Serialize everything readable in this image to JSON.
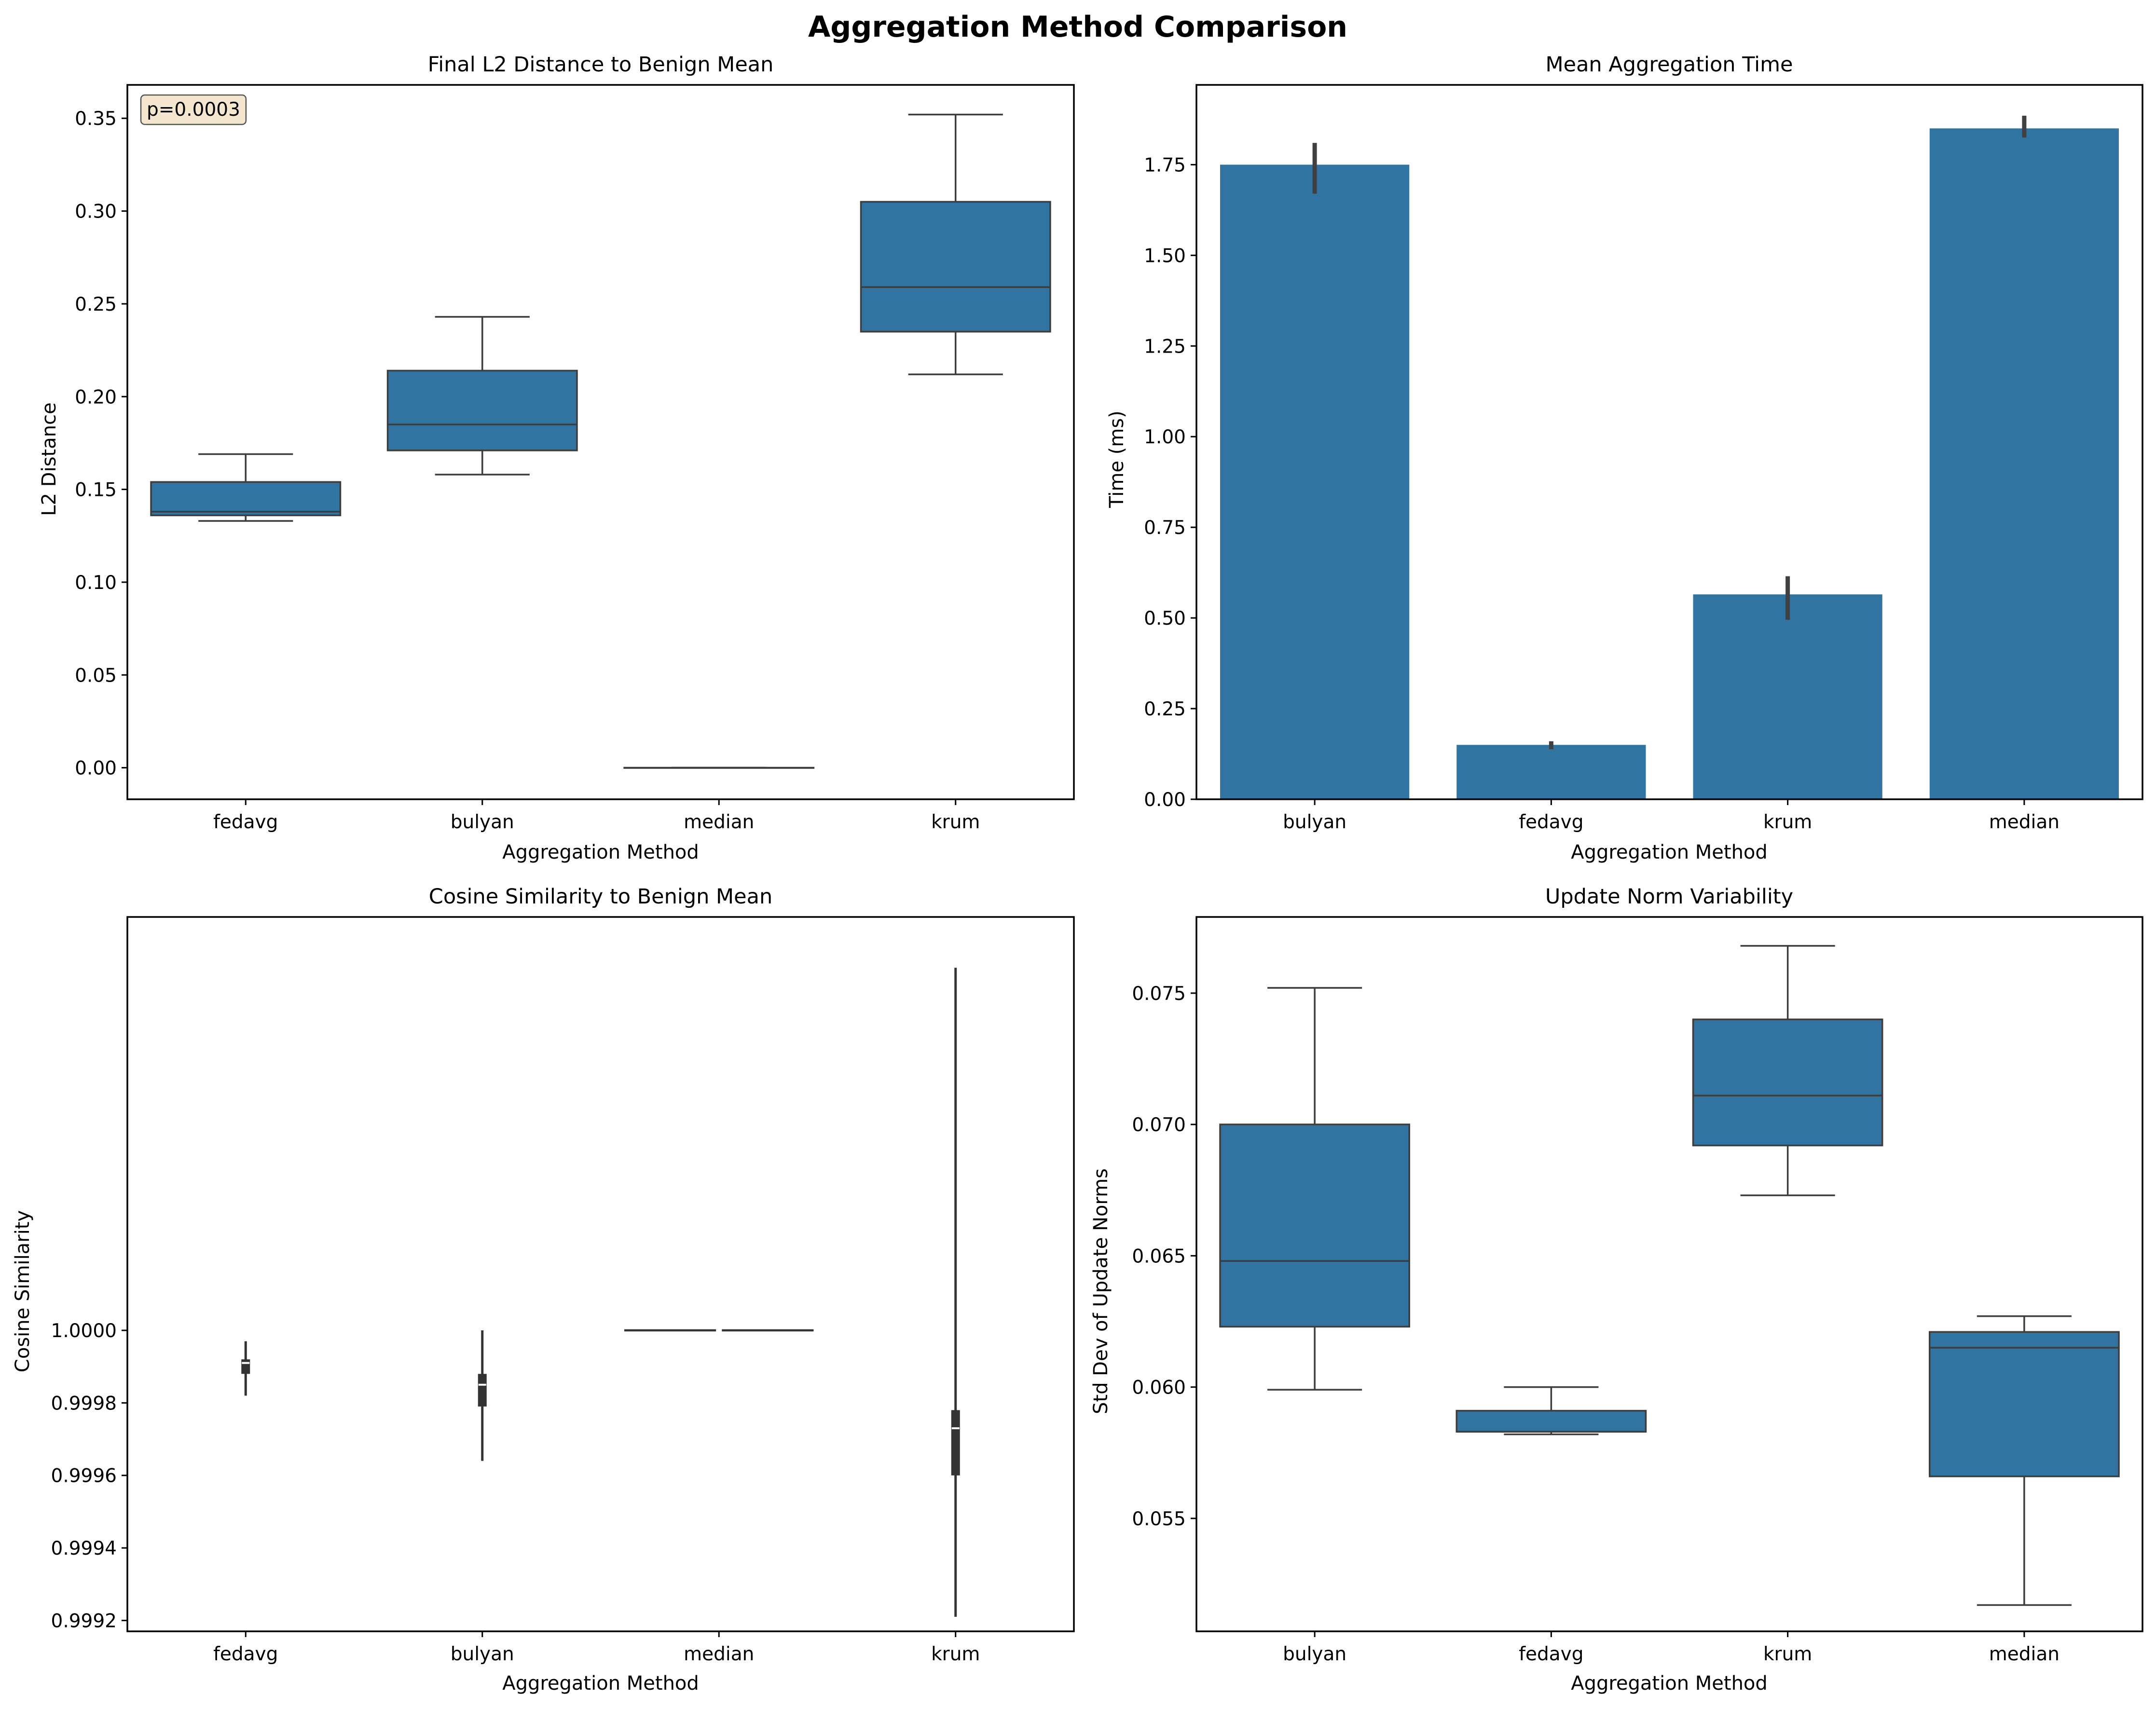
{
  "figure": {
    "title": "Aggregation Method Comparison"
  },
  "colors": {
    "bar": "#3274a1",
    "line": "#3d3d3d",
    "annotation_bg": "#f5e7cf"
  },
  "chart_data": [
    {
      "id": "l2",
      "type": "box",
      "title": "Final L2 Distance to Benign Mean",
      "xlabel": "Aggregation Method",
      "ylabel": "L2 Distance",
      "ylim": [
        -0.017,
        0.368
      ],
      "yticks": [
        0.0,
        0.05,
        0.1,
        0.15,
        0.2,
        0.25,
        0.3,
        0.35
      ],
      "ytick_labels": [
        "0.00",
        "0.05",
        "0.10",
        "0.15",
        "0.20",
        "0.25",
        "0.30",
        "0.35"
      ],
      "categories": [
        "fedavg",
        "bulyan",
        "median",
        "krum"
      ],
      "boxes": [
        {
          "category": "fedavg",
          "whislo": 0.133,
          "q1": 0.136,
          "median": 0.138,
          "q3": 0.154,
          "whishi": 0.169
        },
        {
          "category": "bulyan",
          "whislo": 0.158,
          "q1": 0.171,
          "median": 0.185,
          "q3": 0.214,
          "whishi": 0.243
        },
        {
          "category": "median",
          "whislo": 0.0,
          "q1": 0.0,
          "median": 0.0,
          "q3": 0.0,
          "whishi": 0.0
        },
        {
          "category": "krum",
          "whislo": 0.212,
          "q1": 0.235,
          "median": 0.259,
          "q3": 0.305,
          "whishi": 0.352
        }
      ],
      "annotation": "p=0.0003",
      "grid": false
    },
    {
      "id": "time",
      "type": "bar",
      "title": "Mean Aggregation Time",
      "xlabel": "Aggregation Method",
      "ylabel": "Time (ms)",
      "ylim": [
        0,
        1.97
      ],
      "yticks": [
        0.0,
        0.25,
        0.5,
        0.75,
        1.0,
        1.25,
        1.5,
        1.75
      ],
      "ytick_labels": [
        "0.00",
        "0.25",
        "0.50",
        "0.75",
        "1.00",
        "1.25",
        "1.50",
        "1.75"
      ],
      "categories": [
        "bulyan",
        "fedavg",
        "krum",
        "median"
      ],
      "values": [
        1.75,
        0.15,
        0.565,
        1.85
      ],
      "error_low": [
        1.67,
        0.138,
        0.495,
        1.825
      ],
      "error_high": [
        1.81,
        0.16,
        0.615,
        1.885
      ],
      "grid": false
    },
    {
      "id": "cos",
      "type": "violin",
      "title": "Cosine Similarity to Benign Mean",
      "xlabel": "Aggregation Method",
      "ylabel": "Cosine Similarity",
      "ylim": [
        0.99917,
        1.00114
      ],
      "yticks": [
        0.9992,
        0.9994,
        0.9996,
        0.9998,
        1.0
      ],
      "ytick_labels": [
        "0.9992",
        "0.9994",
        "0.9996",
        "0.9998",
        "1.0000"
      ],
      "categories": [
        "fedavg",
        "bulyan",
        "median",
        "krum"
      ],
      "violins": [
        {
          "category": "fedavg",
          "min": 0.99982,
          "q1": 0.99988,
          "median": 0.99991,
          "q3": 0.99992,
          "max": 0.99997,
          "whislo": 0.99987,
          "whishi": 0.99994
        },
        {
          "category": "bulyan",
          "min": 0.99964,
          "q1": 0.99979,
          "median": 0.99985,
          "q3": 0.99988,
          "max": 1.0,
          "whislo": 0.99975,
          "whishi": 0.99992
        },
        {
          "category": "median",
          "min": 1.0,
          "q1": 1.0,
          "median": 1.0,
          "q3": 1.0,
          "max": 1.0,
          "whislo": 1.0,
          "whishi": 1.0
        },
        {
          "category": "krum",
          "min": 0.99921,
          "q1": 0.9996,
          "median": 0.99973,
          "q3": 0.99978,
          "max": 1.001,
          "whislo": 0.99949,
          "whishi": 0.99983
        }
      ],
      "grid": false
    },
    {
      "id": "norm",
      "type": "box",
      "title": "Update Norm Variability",
      "xlabel": "Aggregation Method",
      "ylabel": "Std Dev of Update Norms",
      "ylim": [
        0.0507,
        0.0779
      ],
      "yticks": [
        0.055,
        0.06,
        0.065,
        0.07,
        0.075
      ],
      "ytick_labels": [
        "0.055",
        "0.060",
        "0.065",
        "0.070",
        "0.075"
      ],
      "categories": [
        "bulyan",
        "fedavg",
        "krum",
        "median"
      ],
      "boxes": [
        {
          "category": "bulyan",
          "whislo": 0.0599,
          "q1": 0.0623,
          "median": 0.0648,
          "q3": 0.07,
          "whishi": 0.0752
        },
        {
          "category": "fedavg",
          "whislo": 0.0582,
          "q1": 0.0583,
          "median": 0.0583,
          "q3": 0.0591,
          "whishi": 0.06
        },
        {
          "category": "krum",
          "whislo": 0.0673,
          "q1": 0.0692,
          "median": 0.0711,
          "q3": 0.074,
          "whishi": 0.0768
        },
        {
          "category": "median",
          "whislo": 0.0517,
          "q1": 0.0566,
          "median": 0.0615,
          "q3": 0.0621,
          "whishi": 0.0627
        }
      ],
      "grid": false
    }
  ]
}
